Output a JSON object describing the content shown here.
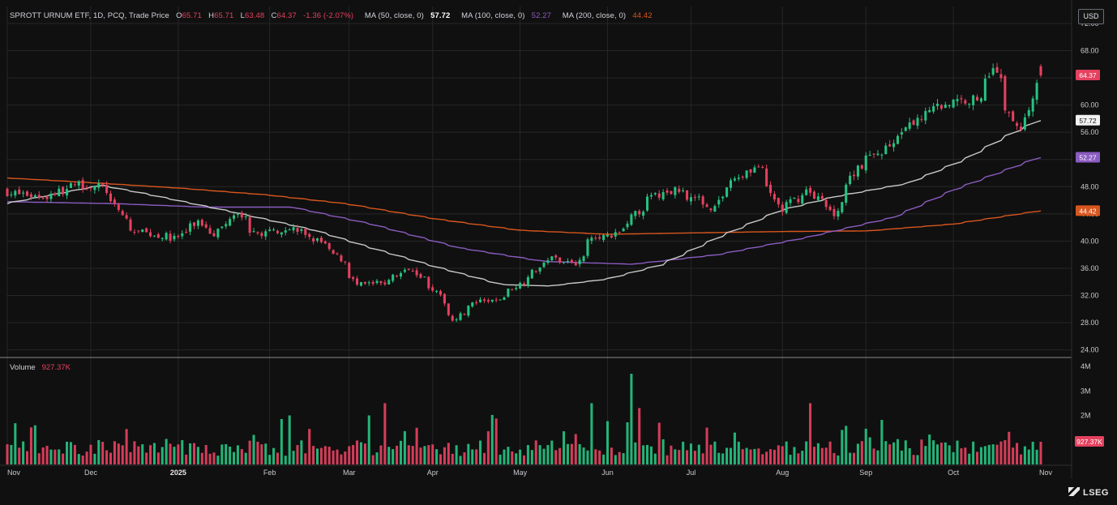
{
  "legend": {
    "title": "SPROTT URNUM ETF, 1D, PCQ, Trade Price",
    "o_label": "O",
    "o_value": "65.71",
    "h_label": "H",
    "h_value": "65.71",
    "l_label": "L",
    "l_value": "63.48",
    "c_label": "C",
    "c_value": "64.37",
    "change": "-1.36 (-2.07%)",
    "ma50_label": "MA (50, close, 0)",
    "ma50_value": "57.72",
    "ma100_label": "MA (100, close, 0)",
    "ma100_value": "52.27",
    "ma200_label": "MA (200, close, 0)",
    "ma200_value": "44.42"
  },
  "volume_legend": {
    "label": "Volume",
    "value": "927.37K"
  },
  "currency": "USD",
  "brand": "LSEG",
  "colors": {
    "up": "#26c281",
    "down": "#e5415f",
    "ma50": "#c8c8c8",
    "ma100": "#8a5cc0",
    "ma200": "#d8561e",
    "grid": "#262626",
    "background": "#101010",
    "text": "#d1d4dc"
  },
  "chart_data": {
    "type": "candlestick",
    "price_axis": {
      "ticks": [
        "72.00",
        "68.00",
        "64.00",
        "60.00",
        "56.00",
        "52.00",
        "48.00",
        "44.00",
        "40.00",
        "36.00",
        "32.00",
        "28.00",
        "24.00"
      ],
      "range": [
        23.0,
        74.5
      ]
    },
    "volume_axis": {
      "ticks": [
        "4M",
        "3M",
        "2M"
      ],
      "range": [
        0,
        4000000
      ]
    },
    "x_labels": [
      "Nov",
      "Dec",
      "2025",
      "Feb",
      "Mar",
      "Apr",
      "May",
      "Jun",
      "Jul",
      "Aug",
      "Sep",
      "Oct",
      "Nov"
    ],
    "price_badges": {
      "last": "64.37",
      "ma50": "57.72",
      "ma100": "52.27",
      "ma200": "44.42",
      "volume": "927.37K"
    },
    "key_closes": [
      [
        "2024-11-01",
        47.2
      ],
      [
        "2024-11-15",
        46.5
      ],
      [
        "2024-11-27",
        48.3
      ],
      [
        "2024-12-05",
        48.0
      ],
      [
        "2024-12-10",
        45.0
      ],
      [
        "2024-12-16",
        41.5
      ],
      [
        "2024-12-31",
        40.4
      ],
      [
        "2025-01-08",
        42.8
      ],
      [
        "2025-01-14",
        41.2
      ],
      [
        "2025-01-22",
        44.5
      ],
      [
        "2025-01-28",
        41.0
      ],
      [
        "2025-02-10",
        42.0
      ],
      [
        "2025-02-20",
        39.8
      ],
      [
        "2025-02-28",
        37.0
      ],
      [
        "2025-03-05",
        33.5
      ],
      [
        "2025-03-14",
        33.8
      ],
      [
        "2025-03-24",
        36.2
      ],
      [
        "2025-04-01",
        33.0
      ],
      [
        "2025-04-08",
        28.5
      ],
      [
        "2025-04-16",
        31.0
      ],
      [
        "2025-04-23",
        31.2
      ],
      [
        "2025-05-02",
        34.0
      ],
      [
        "2025-05-12",
        37.5
      ],
      [
        "2025-05-22",
        36.8
      ],
      [
        "2025-05-27",
        41.0
      ],
      [
        "2025-06-03",
        40.4
      ],
      [
        "2025-06-10",
        43.5
      ],
      [
        "2025-06-17",
        46.5
      ],
      [
        "2025-06-26",
        47.5
      ],
      [
        "2025-07-08",
        45.0
      ],
      [
        "2025-07-17",
        49.5
      ],
      [
        "2025-07-24",
        51.0
      ],
      [
        "2025-08-01",
        44.5
      ],
      [
        "2025-08-11",
        47.5
      ],
      [
        "2025-08-20",
        44.0
      ],
      [
        "2025-08-28",
        51.0
      ],
      [
        "2025-09-10",
        54.5
      ],
      [
        "2025-09-22",
        59.5
      ],
      [
        "2025-10-02",
        60.5
      ],
      [
        "2025-10-10",
        61.0
      ],
      [
        "2025-10-15",
        66.0
      ],
      [
        "2025-10-20",
        59.5
      ],
      [
        "2025-10-24",
        56.5
      ],
      [
        "2025-10-27",
        58.0
      ],
      [
        "2025-10-31",
        64.37
      ]
    ],
    "ma50": [
      [
        "2024-11-01",
        45.5
      ],
      [
        "2024-12-05",
        48.2
      ],
      [
        "2024-12-20",
        47.0
      ],
      [
        "2025-01-20",
        44.3
      ],
      [
        "2025-02-18",
        41.6
      ],
      [
        "2025-03-10",
        39.0
      ],
      [
        "2025-04-01",
        36.3
      ],
      [
        "2025-04-25",
        33.6
      ],
      [
        "2025-05-12",
        33.4
      ],
      [
        "2025-06-01",
        34.4
      ],
      [
        "2025-06-20",
        36.5
      ],
      [
        "2025-07-10",
        40.5
      ],
      [
        "2025-08-01",
        44.5
      ],
      [
        "2025-08-20",
        46.5
      ],
      [
        "2025-09-15",
        48.5
      ],
      [
        "2025-10-05",
        52.0
      ],
      [
        "2025-10-20",
        55.5
      ],
      [
        "2025-10-31",
        57.72
      ]
    ],
    "ma100": [
      [
        "2024-11-01",
        45.8
      ],
      [
        "2024-12-10",
        45.5
      ],
      [
        "2025-01-10",
        45.0
      ],
      [
        "2025-02-10",
        45.0
      ],
      [
        "2025-03-10",
        42.5
      ],
      [
        "2025-04-10",
        39.0
      ],
      [
        "2025-05-10",
        37.0
      ],
      [
        "2025-06-10",
        36.6
      ],
      [
        "2025-07-10",
        38.0
      ],
      [
        "2025-08-10",
        40.5
      ],
      [
        "2025-09-10",
        43.5
      ],
      [
        "2025-10-01",
        47.5
      ],
      [
        "2025-10-31",
        52.27
      ]
    ],
    "ma200": [
      [
        "2024-11-01",
        49.3
      ],
      [
        "2024-12-01",
        48.6
      ],
      [
        "2025-01-01",
        47.8
      ],
      [
        "2025-02-01",
        46.8
      ],
      [
        "2025-03-01",
        45.5
      ],
      [
        "2025-04-01",
        43.3
      ],
      [
        "2025-05-01",
        41.6
      ],
      [
        "2025-06-01",
        41.0
      ],
      [
        "2025-07-01",
        41.2
      ],
      [
        "2025-08-01",
        41.4
      ],
      [
        "2025-09-01",
        41.5
      ],
      [
        "2025-10-01",
        42.5
      ],
      [
        "2025-10-31",
        44.42
      ]
    ],
    "volume_peaks": [
      [
        "2025-02-10",
        2000000
      ],
      [
        "2025-03-10",
        2000000
      ],
      [
        "2025-03-14",
        2500000
      ],
      [
        "2025-05-27",
        2500000
      ],
      [
        "2025-06-10",
        3700000
      ],
      [
        "2025-06-12",
        2300000
      ],
      [
        "2025-08-12",
        2500000
      ],
      [
        "2025-10-31",
        927370
      ]
    ]
  }
}
